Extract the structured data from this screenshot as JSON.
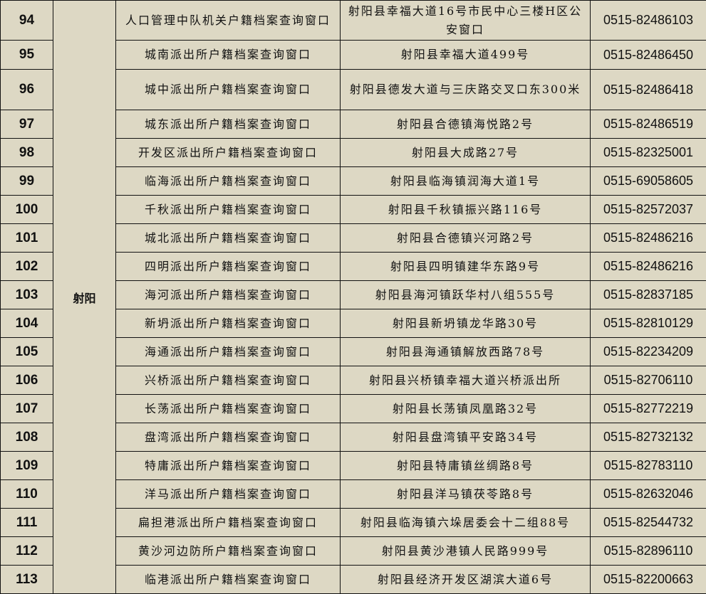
{
  "district": "射阳",
  "rows": [
    {
      "no": "94",
      "name": "人口管理中队机关户籍档案查询窗口",
      "address": "射阳县幸福大道16号市民中心三楼H区公安窗口",
      "phone": "0515-82486103"
    },
    {
      "no": "95",
      "name": "城南派出所户籍档案查询窗口",
      "address": "射阳县幸福大道499号",
      "phone": "0515-82486450"
    },
    {
      "no": "96",
      "name": "城中派出所户籍档案查询窗口",
      "address": "射阳县德发大道与三庆路交叉口东300米",
      "phone": "0515-82486418"
    },
    {
      "no": "97",
      "name": "城东派出所户籍档案查询窗口",
      "address": "射阳县合德镇海悦路2号",
      "phone": "0515-82486519"
    },
    {
      "no": "98",
      "name": "开发区派出所户籍档案查询窗口",
      "address": "射阳县大成路27号",
      "phone": "0515-82325001"
    },
    {
      "no": "99",
      "name": "临海派出所户籍档案查询窗口",
      "address": "射阳县临海镇润海大道1号",
      "phone": "0515-69058605"
    },
    {
      "no": "100",
      "name": "千秋派出所户籍档案查询窗口",
      "address": "射阳县千秋镇振兴路116号",
      "phone": "0515-82572037"
    },
    {
      "no": "101",
      "name": "城北派出所户籍档案查询窗口",
      "address": "射阳县合德镇兴河路2号",
      "phone": "0515-82486216"
    },
    {
      "no": "102",
      "name": "四明派出所户籍档案查询窗口",
      "address": "射阳县四明镇建华东路9号",
      "phone": "0515-82486216"
    },
    {
      "no": "103",
      "name": "海河派出所户籍档案查询窗口",
      "address": "射阳县海河镇跃华村八组555号",
      "phone": "0515-82837185"
    },
    {
      "no": "104",
      "name": "新坍派出所户籍档案查询窗口",
      "address": "射阳县新坍镇龙华路30号",
      "phone": "0515-82810129"
    },
    {
      "no": "105",
      "name": "海通派出所户籍档案查询窗口",
      "address": "射阳县海通镇解放西路78号",
      "phone": "0515-82234209"
    },
    {
      "no": "106",
      "name": "兴桥派出所户籍档案查询窗口",
      "address": "射阳县兴桥镇幸福大道兴桥派出所",
      "phone": "0515-82706110"
    },
    {
      "no": "107",
      "name": "长荡派出所户籍档案查询窗口",
      "address": "射阳县长荡镇凤凰路32号",
      "phone": "0515-82772219"
    },
    {
      "no": "108",
      "name": "盘湾派出所户籍档案查询窗口",
      "address": "射阳县盘湾镇平安路34号",
      "phone": "0515-82732132"
    },
    {
      "no": "109",
      "name": "特庸派出所户籍档案查询窗口",
      "address": "射阳县特庸镇丝绸路8号",
      "phone": "0515-82783110"
    },
    {
      "no": "110",
      "name": "洋马派出所户籍档案查询窗口",
      "address": "射阳县洋马镇茯苓路8号",
      "phone": "0515-82632046"
    },
    {
      "no": "111",
      "name": "扁担港派出所户籍档案查询窗口",
      "address": "射阳县临海镇六垛居委会十二组88号",
      "phone": "0515-82544732"
    },
    {
      "no": "112",
      "name": "黄沙河边防所户籍档案查询窗口",
      "address": "射阳县黄沙港镇人民路999号",
      "phone": "0515-82896110"
    },
    {
      "no": "113",
      "name": "临港派出所户籍档案查询窗口",
      "address": "射阳县经济开发区湖滨大道6号",
      "phone": "0515-82200663"
    }
  ]
}
